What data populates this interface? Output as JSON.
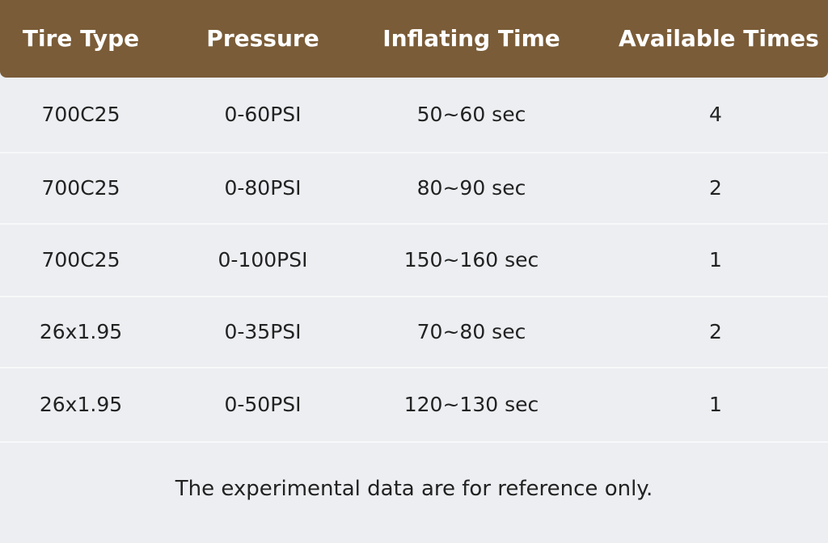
{
  "table": {
    "header": [
      "Tire Type",
      "Pressure",
      "Inflating Time",
      "Available Times"
    ],
    "rows": [
      [
        "700C25",
        "0-60PSI",
        "50~60 sec",
        4
      ],
      [
        "700C25",
        "0-80PSI",
        "80~90 sec",
        2
      ],
      [
        "700C25",
        "0-100PSI",
        "150~160 sec",
        1
      ],
      [
        "26x1.95",
        "0-35PSI",
        "70~80 sec",
        2
      ],
      [
        "26x1.95",
        "0-50PSI",
        "120~130 sec",
        1
      ]
    ]
  },
  "footnote": "The experimental data are for reference only."
}
